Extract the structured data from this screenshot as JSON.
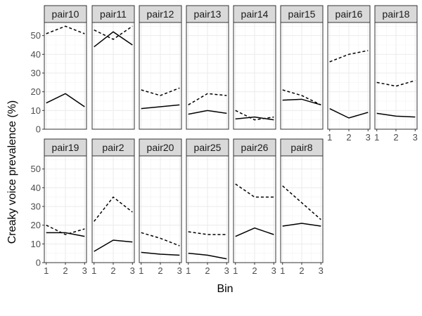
{
  "chart_data": {
    "type": "line",
    "xlabel": "Bin",
    "ylabel": "Creaky voice prevalence (%)",
    "x": [
      1,
      2,
      3
    ],
    "x_ticks": [
      "1",
      "2",
      "3"
    ],
    "y_ticks": [
      "0",
      "10",
      "20",
      "30",
      "40",
      "50"
    ],
    "ylim": [
      0,
      57
    ],
    "grid": true,
    "line_styles": [
      "solid",
      "dashed"
    ],
    "panels": [
      {
        "name": "pair10",
        "series": [
          {
            "style": "solid",
            "values": [
              14,
              19,
              12
            ]
          },
          {
            "style": "dashed",
            "values": [
              51,
              55,
              51
            ]
          }
        ]
      },
      {
        "name": "pair11",
        "series": [
          {
            "style": "solid",
            "values": [
              44,
              52,
              45
            ]
          },
          {
            "style": "dashed",
            "values": [
              53,
              48,
              55
            ]
          }
        ]
      },
      {
        "name": "pair12",
        "series": [
          {
            "style": "solid",
            "values": [
              11,
              12,
              13
            ]
          },
          {
            "style": "dashed",
            "values": [
              21,
              18,
              22
            ]
          }
        ]
      },
      {
        "name": "pair13",
        "series": [
          {
            "style": "solid",
            "values": [
              8,
              10,
              8.5
            ]
          },
          {
            "style": "dashed",
            "values": [
              13,
              19,
              18
            ]
          }
        ]
      },
      {
        "name": "pair14",
        "series": [
          {
            "style": "solid",
            "values": [
              5.5,
              6.5,
              5
            ]
          },
          {
            "style": "dashed",
            "values": [
              10,
              5,
              6.5
            ]
          }
        ]
      },
      {
        "name": "pair15",
        "series": [
          {
            "style": "solid",
            "values": [
              15.5,
              16,
              13
            ]
          },
          {
            "style": "dashed",
            "values": [
              21,
              18,
              13
            ]
          }
        ]
      },
      {
        "name": "pair16",
        "series": [
          {
            "style": "solid",
            "values": [
              11,
              6,
              9
            ]
          },
          {
            "style": "dashed",
            "values": [
              36,
              40,
              42
            ]
          }
        ]
      },
      {
        "name": "pair18",
        "series": [
          {
            "style": "solid",
            "values": [
              8.5,
              7,
              6.5
            ]
          },
          {
            "style": "dashed",
            "values": [
              25,
              23,
              26
            ]
          }
        ]
      },
      {
        "name": "pair19",
        "series": [
          {
            "style": "solid",
            "values": [
              16,
              16,
              14
            ]
          },
          {
            "style": "dashed",
            "values": [
              20,
              15,
              18
            ]
          }
        ]
      },
      {
        "name": "pair2",
        "series": [
          {
            "style": "solid",
            "values": [
              6,
              12,
              11
            ]
          },
          {
            "style": "dashed",
            "values": [
              22,
              35,
              27
            ]
          }
        ]
      },
      {
        "name": "pair20",
        "series": [
          {
            "style": "solid",
            "values": [
              5.5,
              4.5,
              4
            ]
          },
          {
            "style": "dashed",
            "values": [
              16,
              13,
              9
            ]
          }
        ]
      },
      {
        "name": "pair25",
        "series": [
          {
            "style": "solid",
            "values": [
              5,
              4,
              2
            ]
          },
          {
            "style": "dashed",
            "values": [
              16.5,
              15,
              15
            ]
          }
        ]
      },
      {
        "name": "pair26",
        "series": [
          {
            "style": "solid",
            "values": [
              14,
              18.5,
              15
            ]
          },
          {
            "style": "dashed",
            "values": [
              42,
              35,
              35
            ]
          }
        ]
      },
      {
        "name": "pair8",
        "series": [
          {
            "style": "solid",
            "values": [
              19.5,
              21,
              19.5
            ]
          },
          {
            "style": "dashed",
            "values": [
              41,
              32,
              23
            ]
          }
        ]
      }
    ]
  }
}
